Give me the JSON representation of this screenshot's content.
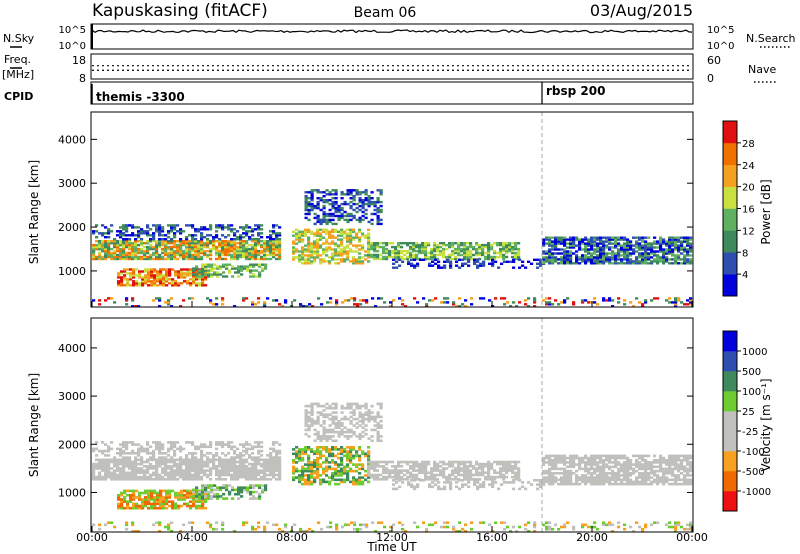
{
  "header": {
    "station": "Kapuskasing (fitACF)",
    "beam": "Beam 06",
    "date": "03/Aug/2015"
  },
  "colors": {
    "power_scale": [
      "#0000dd",
      "#2e4fb0",
      "#3f8a5c",
      "#5fb060",
      "#c8e040",
      "#f6a020",
      "#f07000",
      "#e01010"
    ],
    "velocity_scale": [
      "#ee1010",
      "#f06800",
      "#f8a020",
      "#c0c0bc",
      "#c0c0bc",
      "#6ccc30",
      "#3f8a5c",
      "#2e4fb0",
      "#0000dd"
    ],
    "noise_line": "#000000",
    "cpid_marker": "#999999"
  },
  "chart_data": [
    {
      "type": "line",
      "panel": "noise",
      "left_label": "N.Sky",
      "right_label": "N.Search",
      "left_ticks": [
        "10^5",
        "10^0"
      ],
      "right_ticks": [
        "10^5",
        "10^0"
      ],
      "yscale": "log"
    },
    {
      "type": "line",
      "panel": "frequency",
      "left_label": "Freq.",
      "left_unit": "[MHz]",
      "right_label": "Nave",
      "left_ticks": [
        "18",
        "8"
      ],
      "right_ticks": [
        "60",
        "0"
      ],
      "ylim_left": [
        8,
        18
      ],
      "ylim_right": [
        0,
        60
      ],
      "freq_mhz": 11.5,
      "nave": 32
    },
    {
      "type": "table",
      "panel": "cpid",
      "label": "CPID",
      "segments": [
        {
          "name": "themis -3300",
          "start_hour": 0
        },
        {
          "name": "rbsp 200",
          "start_hour": 18
        }
      ]
    },
    {
      "type": "heatmap",
      "panel": "power",
      "ylabel": "Slant Range [km]",
      "colorbar_label": "Power [dB]",
      "colorbar_ticks": [
        "28",
        "24",
        "20",
        "16",
        "12",
        "8",
        "4"
      ],
      "yticks": [
        "1000",
        "2000",
        "3000",
        "4000"
      ],
      "ylim": [
        200,
        4600
      ],
      "xlim": [
        0,
        24
      ],
      "grid": false
    },
    {
      "type": "heatmap",
      "panel": "velocity",
      "ylabel": "Slant Range [km]",
      "colorbar_label": "Velocity [m s⁻¹]",
      "colorbar_ticks": [
        "1000",
        "500",
        "100",
        "25",
        "-25",
        "-100",
        "-500",
        "-1000"
      ],
      "yticks": [
        "1000",
        "2000",
        "3000",
        "4000"
      ],
      "ylim": [
        200,
        4600
      ],
      "xlim": [
        0,
        24
      ],
      "xlabel": "Time UT",
      "xticks": [
        "00:00",
        "04:00",
        "08:00",
        "12:00",
        "16:00",
        "20:00",
        "00:00"
      ],
      "grid": false
    }
  ]
}
